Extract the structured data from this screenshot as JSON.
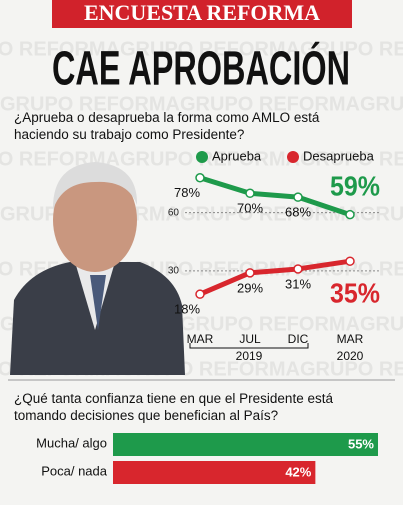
{
  "header": {
    "kicker": "ENCUESTA REFORMA",
    "headline": "CAE APROBACIÓN",
    "watermark": "GRUPO REFORMA"
  },
  "chart_data": [
    {
      "type": "line",
      "title": "¿Aprueba o desaprueba la forma como AMLO está haciendo su trabajo como Presidente?",
      "categories": [
        "MAR",
        "JUL",
        "DIC",
        "MAR"
      ],
      "year_labels": [
        "2019",
        "2020"
      ],
      "ylim": [
        15,
        82
      ],
      "yticks": [
        30,
        60
      ],
      "grid": true,
      "series": [
        {
          "name": "Aprueba",
          "color": "#1e9a4b",
          "values": [
            78,
            70,
            68,
            59
          ],
          "value_labels": [
            "78%",
            "70%",
            "68%",
            "59%"
          ]
        },
        {
          "name": "Desaprueba",
          "color": "#d8262d",
          "values": [
            18,
            29,
            31,
            35
          ],
          "value_labels": [
            "18%",
            "29%",
            "31%",
            "35%"
          ]
        }
      ]
    },
    {
      "type": "hbar",
      "title": "¿Qué tanta confianza tiene en que el Presidente está tomando decisiones que benefician al País?",
      "categories": [
        "Mucha/ algo",
        "Poca/ nada"
      ],
      "values": [
        55,
        42
      ],
      "value_labels": [
        "55%",
        "42%"
      ],
      "colors": [
        "#1e9a4b",
        "#d8262d"
      ],
      "xlim": [
        0,
        55
      ]
    }
  ]
}
